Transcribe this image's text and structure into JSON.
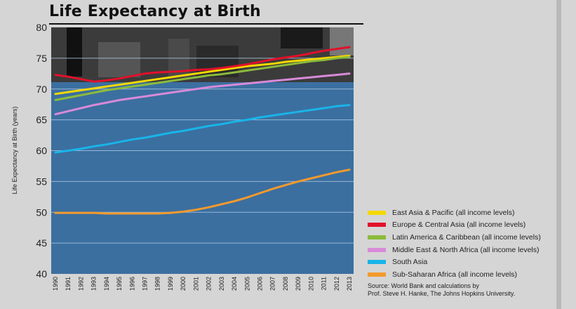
{
  "chart_data": {
    "type": "line",
    "title": "Life Expectancy at Birth",
    "xlabel": "",
    "ylabel": "Life Expectancy at Birth (years)",
    "ylim": [
      40,
      80
    ],
    "yticks": [
      40,
      45,
      50,
      55,
      60,
      65,
      70,
      75,
      80
    ],
    "grid": true,
    "legend_position": "bottom-right",
    "categories": [
      "1990",
      "1991",
      "1992",
      "1993",
      "1994",
      "1995",
      "1996",
      "1997",
      "1998",
      "1999",
      "2000",
      "2001",
      "2002",
      "2003",
      "2004",
      "2005",
      "2006",
      "2007",
      "2008",
      "2009",
      "2010",
      "2011",
      "2012",
      "2013"
    ],
    "series": [
      {
        "name": "East Asia & Pacific (all income levels)",
        "color": "#f5d800",
        "values": [
          69.2,
          69.5,
          69.8,
          70.1,
          70.4,
          70.7,
          71.0,
          71.3,
          71.6,
          71.9,
          72.2,
          72.5,
          72.8,
          73.1,
          73.4,
          73.7,
          73.9,
          74.1,
          74.4,
          74.6,
          74.8,
          75.0,
          75.2,
          75.4
        ]
      },
      {
        "name": "Europe & Central Asia (all income levels)",
        "color": "#e2102a",
        "values": [
          72.3,
          72.0,
          71.6,
          71.2,
          71.4,
          71.7,
          72.1,
          72.5,
          72.7,
          72.8,
          72.9,
          73.1,
          73.2,
          73.4,
          73.7,
          74.0,
          74.4,
          74.8,
          75.1,
          75.4,
          75.8,
          76.2,
          76.5,
          76.8
        ]
      },
      {
        "name": "Latin America & Caribbean (all income levels)",
        "color": "#8bbb3c",
        "values": [
          68.2,
          68.6,
          69.0,
          69.4,
          69.8,
          70.1,
          70.4,
          70.7,
          71.0,
          71.3,
          71.6,
          71.9,
          72.2,
          72.4,
          72.7,
          73.0,
          73.3,
          73.6,
          73.9,
          74.2,
          74.5,
          74.7,
          75.0,
          75.2
        ]
      },
      {
        "name": "Middle East & North Africa (all income levels)",
        "color": "#d88ad8",
        "values": [
          65.9,
          66.4,
          66.9,
          67.4,
          67.8,
          68.2,
          68.5,
          68.8,
          69.1,
          69.4,
          69.7,
          70.0,
          70.3,
          70.5,
          70.7,
          70.9,
          71.1,
          71.3,
          71.5,
          71.7,
          71.9,
          72.1,
          72.3,
          72.5
        ]
      },
      {
        "name": "South Asia",
        "color": "#19b4e8",
        "values": [
          59.7,
          60.0,
          60.3,
          60.7,
          61.0,
          61.4,
          61.8,
          62.1,
          62.5,
          62.9,
          63.2,
          63.6,
          64.0,
          64.3,
          64.7,
          65.0,
          65.4,
          65.7,
          66.0,
          66.3,
          66.6,
          66.9,
          67.2,
          67.4
        ]
      },
      {
        "name": "Sub-Saharan Africa (all income levels)",
        "color": "#f39a2c",
        "values": [
          49.9,
          49.9,
          49.9,
          49.9,
          49.8,
          49.8,
          49.8,
          49.8,
          49.8,
          49.9,
          50.1,
          50.4,
          50.8,
          51.3,
          51.8,
          52.4,
          53.1,
          53.8,
          54.4,
          55.0,
          55.5,
          56.0,
          56.5,
          56.9
        ]
      }
    ],
    "source": [
      "Source: World Bank and calculations by",
      "Prof. Steve H. Hanke, The Johns Hopkins University."
    ]
  }
}
